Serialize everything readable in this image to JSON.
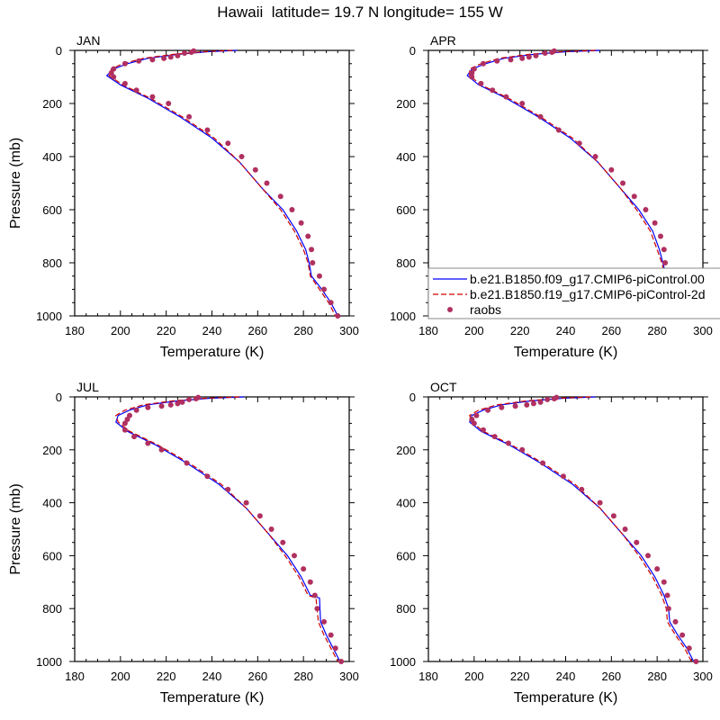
{
  "figure": {
    "title": "Hawaii  latitude= 19.7 N longitude= 155 W",
    "colors": {
      "model1": "#0000ff",
      "model2": "#cc0000",
      "raobs": "#b03060",
      "axis": "#000000",
      "legend_border": "#888888"
    }
  },
  "legend": {
    "entries": [
      {
        "label": "b.e21.B1850.f09_g17.CMIP6-piControl.00",
        "style": "solid-line",
        "color": "#0000ff"
      },
      {
        "label": "b.e21.B1850.f19_g17.CMIP6-piControl-2d",
        "style": "dashed-line",
        "color": "#cc0000"
      },
      {
        "label": "raobs",
        "style": "marker",
        "color": "#b03060"
      }
    ]
  },
  "chart_data": [
    {
      "type": "line",
      "panel_label": "JAN",
      "xlabel": "Temperature (K)",
      "ylabel": "Pressure (mb)",
      "xlim": [
        180,
        300
      ],
      "ylim": [
        1000,
        0
      ],
      "x_ticks": [
        180,
        200,
        220,
        240,
        260,
        280,
        300
      ],
      "y_ticks": [
        0,
        200,
        400,
        600,
        800,
        1000
      ],
      "series": [
        {
          "name": "b.e21.B1850.f09_g17.CMIP6-piControl.00",
          "style": "solid",
          "x": [
            251,
            238,
            225,
            212,
            203,
            197,
            194,
            200,
            212,
            226,
            240,
            252,
            262,
            271,
            277,
            281,
            282.5,
            283.5,
            288,
            292,
            295
          ],
          "y": [
            0,
            5,
            15,
            30,
            50,
            70,
            95,
            130,
            180,
            250,
            330,
            420,
            520,
            600,
            680,
            750,
            800,
            850,
            900,
            950,
            1000
          ]
        },
        {
          "name": "b.e21.B1850.f19_g17.CMIP6-piControl-2d",
          "style": "dashed",
          "x": [
            249,
            236,
            223,
            210,
            201,
            196,
            195,
            201,
            213,
            227,
            241,
            252,
            262,
            270,
            276,
            280,
            282,
            283,
            287,
            291,
            294
          ],
          "y": [
            0,
            5,
            15,
            30,
            50,
            70,
            95,
            130,
            180,
            250,
            330,
            420,
            520,
            600,
            680,
            750,
            800,
            850,
            900,
            950,
            1000
          ]
        },
        {
          "name": "raobs",
          "style": "marker",
          "x": [
            232,
            231,
            228,
            225,
            222,
            219,
            214,
            208,
            202,
            197,
            196,
            197,
            202,
            207,
            214,
            221,
            230,
            238,
            247,
            253,
            259,
            264,
            270,
            275,
            279,
            282,
            283.5,
            284,
            287,
            289,
            292,
            295
          ],
          "y": [
            2,
            7,
            10,
            20,
            25,
            30,
            35,
            40,
            50,
            70,
            85,
            100,
            125,
            150,
            175,
            200,
            250,
            300,
            350,
            400,
            450,
            500,
            550,
            600,
            650,
            700,
            750,
            800,
            850,
            900,
            950,
            1000
          ]
        }
      ]
    },
    {
      "type": "line",
      "panel_label": "APR",
      "xlabel": "Temperature (K)",
      "ylabel": "",
      "xlim": [
        180,
        300
      ],
      "ylim": [
        1000,
        0
      ],
      "x_ticks": [
        180,
        200,
        220,
        240,
        260,
        280,
        300
      ],
      "y_ticks": [
        0,
        200,
        400,
        600,
        800,
        1000
      ],
      "series": [
        {
          "name": "b.e21.B1850.f09_g17.CMIP6-piControl.00",
          "style": "solid",
          "x": [
            255,
            240,
            226,
            213,
            205,
            199,
            197,
            202,
            214,
            228,
            242,
            254,
            264,
            272,
            278,
            281,
            282.5,
            284,
            288,
            292,
            295
          ],
          "y": [
            0,
            5,
            15,
            30,
            50,
            70,
            95,
            130,
            180,
            250,
            330,
            420,
            520,
            600,
            680,
            750,
            800,
            850,
            900,
            950,
            1000
          ]
        },
        {
          "name": "b.e21.B1850.f19_g17.CMIP6-piControl-2d",
          "style": "dashed",
          "x": [
            253,
            238,
            224,
            211,
            203,
            198,
            198,
            203,
            215,
            229,
            243,
            254,
            264,
            271,
            277,
            280,
            282,
            283.5,
            287,
            291,
            294
          ],
          "y": [
            0,
            5,
            15,
            30,
            50,
            70,
            95,
            130,
            180,
            250,
            330,
            420,
            520,
            600,
            680,
            750,
            800,
            850,
            900,
            950,
            1000
          ]
        },
        {
          "name": "raobs",
          "style": "marker",
          "x": [
            235,
            234,
            231,
            227,
            224,
            221,
            216,
            210,
            204,
            200,
            199,
            199,
            203,
            208,
            214,
            221,
            229,
            237,
            246,
            253,
            260,
            265,
            270,
            275,
            279,
            281.5,
            283,
            283.5,
            286,
            289,
            292,
            295
          ],
          "y": [
            2,
            7,
            10,
            20,
            25,
            30,
            35,
            40,
            50,
            70,
            85,
            100,
            125,
            150,
            175,
            200,
            250,
            300,
            350,
            400,
            450,
            500,
            550,
            600,
            650,
            700,
            750,
            800,
            850,
            900,
            950,
            1000
          ]
        }
      ]
    },
    {
      "type": "line",
      "panel_label": "JUL",
      "xlabel": "Temperature (K)",
      "ylabel": "Pressure (mb)",
      "xlim": [
        180,
        300
      ],
      "ylim": [
        1000,
        0
      ],
      "x_ticks": [
        180,
        200,
        220,
        240,
        260,
        280,
        300
      ],
      "y_ticks": [
        0,
        200,
        400,
        600,
        800,
        1000
      ],
      "series": [
        {
          "name": "b.e21.B1850.f09_g17.CMIP6-piControl.00",
          "style": "solid",
          "x": [
            254,
            239,
            225,
            212,
            204,
            199,
            198,
            203,
            215,
            229,
            243,
            255,
            265,
            273,
            279,
            283,
            287,
            287.5,
            290,
            293,
            296
          ],
          "y": [
            0,
            5,
            15,
            30,
            50,
            70,
            95,
            130,
            180,
            250,
            330,
            420,
            520,
            600,
            680,
            750,
            760,
            850,
            900,
            950,
            1000
          ]
        },
        {
          "name": "b.e21.B1850.f19_g17.CMIP6-piControl-2d",
          "style": "dashed",
          "x": [
            252,
            237,
            223,
            210,
            202,
            198,
            199,
            204,
            216,
            230,
            244,
            255,
            265,
            272,
            278,
            282,
            285.5,
            286.5,
            289,
            292,
            295
          ],
          "y": [
            0,
            5,
            15,
            30,
            50,
            70,
            95,
            130,
            180,
            250,
            330,
            420,
            520,
            600,
            680,
            750,
            760,
            850,
            900,
            950,
            1000
          ]
        },
        {
          "name": "raobs",
          "style": "marker",
          "x": [
            234,
            233,
            230,
            227,
            225,
            222,
            218,
            212,
            207,
            204,
            203,
            202,
            202,
            206,
            212,
            218,
            229,
            238,
            247,
            255,
            261,
            266,
            271,
            276,
            280,
            283,
            285,
            286,
            289,
            292,
            294,
            296.5
          ],
          "y": [
            2,
            7,
            10,
            20,
            25,
            30,
            35,
            40,
            50,
            70,
            85,
            100,
            125,
            150,
            175,
            200,
            250,
            300,
            350,
            400,
            450,
            500,
            550,
            600,
            650,
            700,
            750,
            800,
            850,
            900,
            950,
            1000
          ]
        }
      ]
    },
    {
      "type": "line",
      "panel_label": "OCT",
      "xlabel": "Temperature (K)",
      "ylabel": "",
      "xlim": [
        180,
        300
      ],
      "ylim": [
        1000,
        0
      ],
      "x_ticks": [
        180,
        200,
        220,
        240,
        260,
        280,
        300
      ],
      "y_ticks": [
        0,
        200,
        400,
        600,
        800,
        1000
      ],
      "series": [
        {
          "name": "b.e21.B1850.f09_g17.CMIP6-piControl.00",
          "style": "solid",
          "x": [
            253,
            239,
            225,
            212,
            204,
            199,
            198,
            203,
            215,
            229,
            243,
            255,
            265,
            273,
            279,
            283,
            285,
            285.5,
            289,
            293,
            296
          ],
          "y": [
            0,
            5,
            15,
            30,
            50,
            70,
            95,
            130,
            180,
            250,
            330,
            420,
            520,
            600,
            680,
            750,
            800,
            850,
            900,
            950,
            1000
          ]
        },
        {
          "name": "b.e21.B1850.f19_g17.CMIP6-piControl-2d",
          "style": "dashed",
          "x": [
            251,
            237,
            223,
            210,
            202,
            198,
            199,
            204,
            216,
            230,
            244,
            255,
            265,
            272,
            278,
            282,
            284,
            284.5,
            288,
            292,
            295
          ],
          "y": [
            0,
            5,
            15,
            30,
            50,
            70,
            95,
            130,
            180,
            250,
            330,
            420,
            520,
            600,
            680,
            750,
            800,
            850,
            900,
            950,
            1000
          ]
        },
        {
          "name": "raobs",
          "style": "marker",
          "x": [
            236,
            235,
            232,
            229,
            226,
            223,
            218,
            212,
            206,
            201,
            199,
            200,
            204,
            209,
            215,
            221,
            230,
            239,
            247,
            255,
            261,
            266,
            271,
            276,
            280,
            283,
            284.5,
            285,
            288,
            291,
            294,
            297
          ],
          "y": [
            2,
            7,
            10,
            20,
            25,
            30,
            35,
            40,
            50,
            70,
            85,
            100,
            125,
            150,
            175,
            200,
            250,
            300,
            350,
            400,
            450,
            500,
            550,
            600,
            650,
            700,
            750,
            800,
            850,
            900,
            950,
            1000
          ]
        }
      ]
    }
  ]
}
